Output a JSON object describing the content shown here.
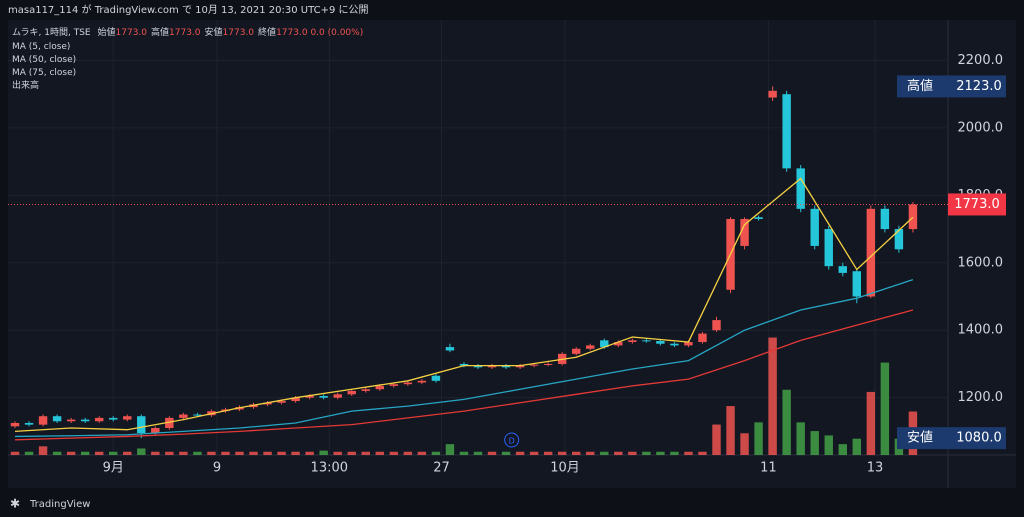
{
  "header": {
    "published": "masa117_114 が TradingView.com で 10月 13, 2021 20:30 UTC+9 に公開"
  },
  "legend": {
    "symbol": "ムラキ, 1時間, TSE",
    "fields": [
      {
        "label": "始値",
        "value": "1773.0"
      },
      {
        "label": "高値",
        "value": "1773.0"
      },
      {
        "label": "安値",
        "value": "1773.0"
      },
      {
        "label": "終値",
        "value": "1773.0"
      }
    ],
    "change": "0.0 (0.00%)",
    "indicators": [
      "MA (5, close)",
      "MA (50, close)",
      "MA (75, close)",
      "出来高"
    ]
  },
  "footer": {
    "brand": "TradingView"
  },
  "chart_data": {
    "type": "candlestick",
    "up_color": "#ef5350",
    "down_color": "#26c6da",
    "vol_up_color": "#ef5350",
    "vol_down_color": "#43a047",
    "xlim": [
      -0.5,
      66.5
    ],
    "xticks": [
      {
        "value": 7,
        "label": "9月"
      },
      {
        "value": 14.4,
        "label": "9"
      },
      {
        "value": 22.4,
        "label": "13:00"
      },
      {
        "value": 30.4,
        "label": "27"
      },
      {
        "value": 39.2,
        "label": "10月"
      },
      {
        "value": 53.7,
        "label": "11"
      },
      {
        "value": 61.3,
        "label": "13"
      }
    ],
    "ylim": [
      1030,
      2320
    ],
    "yticks": [
      {
        "value": 1200,
        "label": "1200.0"
      },
      {
        "value": 1400,
        "label": "1400.0"
      },
      {
        "value": 1600,
        "label": "1600.0"
      },
      {
        "value": 1800,
        "label": "1800.0"
      },
      {
        "value": 2000,
        "label": "2000.0"
      },
      {
        "value": 2200,
        "label": "2200.0"
      }
    ],
    "grid": true,
    "ohlc": [
      [
        1115,
        1130,
        1110,
        1125
      ],
      [
        1125,
        1130,
        1115,
        1120
      ],
      [
        1120,
        1150,
        1115,
        1145
      ],
      [
        1145,
        1150,
        1125,
        1130
      ],
      [
        1130,
        1140,
        1125,
        1135
      ],
      [
        1135,
        1140,
        1125,
        1130
      ],
      [
        1130,
        1145,
        1125,
        1140
      ],
      [
        1140,
        1145,
        1130,
        1135
      ],
      [
        1135,
        1150,
        1130,
        1145
      ],
      [
        1145,
        1150,
        1080,
        1095
      ],
      [
        1095,
        1115,
        1090,
        1110
      ],
      [
        1110,
        1145,
        1105,
        1140
      ],
      [
        1140,
        1155,
        1135,
        1150
      ],
      [
        1150,
        1155,
        1143,
        1148
      ],
      [
        1148,
        1165,
        1143,
        1160
      ],
      [
        1160,
        1170,
        1155,
        1165
      ],
      [
        1165,
        1177,
        1160,
        1172
      ],
      [
        1172,
        1185,
        1167,
        1180
      ],
      [
        1180,
        1190,
        1175,
        1185
      ],
      [
        1185,
        1195,
        1180,
        1190
      ],
      [
        1190,
        1205,
        1185,
        1200
      ],
      [
        1200,
        1210,
        1195,
        1205
      ],
      [
        1205,
        1210,
        1195,
        1200
      ],
      [
        1200,
        1215,
        1195,
        1210
      ],
      [
        1210,
        1225,
        1205,
        1220
      ],
      [
        1220,
        1230,
        1215,
        1225
      ],
      [
        1225,
        1240,
        1220,
        1235
      ],
      [
        1235,
        1245,
        1230,
        1240
      ],
      [
        1240,
        1250,
        1235,
        1245
      ],
      [
        1245,
        1255,
        1240,
        1250
      ],
      [
        1265,
        1270,
        1245,
        1250
      ],
      [
        1350,
        1360,
        1335,
        1340
      ],
      [
        1300,
        1305,
        1290,
        1295
      ],
      [
        1295,
        1300,
        1285,
        1290
      ],
      [
        1290,
        1300,
        1285,
        1295
      ],
      [
        1295,
        1300,
        1285,
        1290
      ],
      [
        1290,
        1300,
        1285,
        1295
      ],
      [
        1295,
        1303,
        1290,
        1298
      ],
      [
        1298,
        1305,
        1293,
        1300
      ],
      [
        1300,
        1335,
        1295,
        1330
      ],
      [
        1330,
        1350,
        1325,
        1345
      ],
      [
        1345,
        1360,
        1340,
        1355
      ],
      [
        1370,
        1375,
        1345,
        1350
      ],
      [
        1355,
        1370,
        1350,
        1365
      ],
      [
        1365,
        1375,
        1360,
        1370
      ],
      [
        1370,
        1375,
        1363,
        1368
      ],
      [
        1368,
        1373,
        1355,
        1360
      ],
      [
        1360,
        1365,
        1350,
        1355
      ],
      [
        1355,
        1370,
        1350,
        1365
      ],
      [
        1365,
        1395,
        1360,
        1390
      ],
      [
        1400,
        1440,
        1395,
        1430
      ],
      [
        1520,
        1735,
        1510,
        1730
      ],
      [
        1650,
        1735,
        1640,
        1730
      ],
      [
        1735,
        1740,
        1725,
        1730
      ],
      [
        2090,
        2123,
        2080,
        2110
      ],
      [
        2100,
        2110,
        1870,
        1880
      ],
      [
        1880,
        1890,
        1750,
        1760
      ],
      [
        1760,
        1770,
        1640,
        1650
      ],
      [
        1700,
        1710,
        1580,
        1590
      ],
      [
        1590,
        1600,
        1560,
        1570
      ],
      [
        1575,
        1580,
        1480,
        1500
      ],
      [
        1500,
        1770,
        1495,
        1760
      ],
      [
        1760,
        1770,
        1690,
        1700
      ],
      [
        1700,
        1710,
        1630,
        1640
      ],
      [
        1700,
        1780,
        1690,
        1773
      ]
    ],
    "volume": [
      3,
      3,
      8,
      3,
      3,
      3,
      3,
      3,
      3,
      6,
      3,
      3,
      3,
      3,
      3,
      3,
      3,
      3,
      3,
      3,
      3,
      3,
      4,
      3,
      3,
      3,
      3,
      3,
      3,
      3,
      3,
      10,
      3,
      3,
      3,
      3,
      3,
      3,
      3,
      3,
      3,
      3,
      3,
      3,
      3,
      3,
      3,
      3,
      3,
      3,
      28,
      45,
      20,
      30,
      108,
      60,
      30,
      22,
      18,
      10,
      15,
      58,
      85,
      15,
      40
    ],
    "volume_lim": [
      0,
      400
    ],
    "ma_x": [
      0,
      4,
      8,
      12,
      16,
      20,
      24,
      28,
      32,
      36,
      40,
      44,
      48,
      52,
      56,
      60,
      64
    ],
    "series": [
      {
        "name": "MA (5, close)",
        "color": "#f5d142",
        "values": [
          1100,
          1110,
          1105,
          1135,
          1170,
          1200,
          1225,
          1250,
          1295,
          1295,
          1320,
          1380,
          1365,
          1713,
          1850,
          1580,
          1735
        ]
      },
      {
        "name": "MA (50, close)",
        "color": "#26a6c4",
        "values": [
          1085,
          1087,
          1090,
          1100,
          1110,
          1125,
          1160,
          1175,
          1195,
          1225,
          1255,
          1285,
          1310,
          1400,
          1460,
          1495,
          1550
        ]
      },
      {
        "name": "MA (75, close)",
        "color": "#e53935",
        "values": [
          1075,
          1080,
          1085,
          1092,
          1100,
          1110,
          1120,
          1140,
          1160,
          1185,
          1210,
          1235,
          1255,
          1310,
          1370,
          1415,
          1460
        ]
      }
    ],
    "last_price": {
      "value": 1773,
      "label": "1773.0"
    },
    "high_label": {
      "label": "高値",
      "value": {
        "value": 2123,
        "label": "2123.0"
      }
    },
    "low_label": {
      "label": "安値",
      "value": {
        "value": 1080,
        "label": "1080.0"
      }
    },
    "dividend_marker": {
      "x": 35.4,
      "label": "D"
    }
  }
}
